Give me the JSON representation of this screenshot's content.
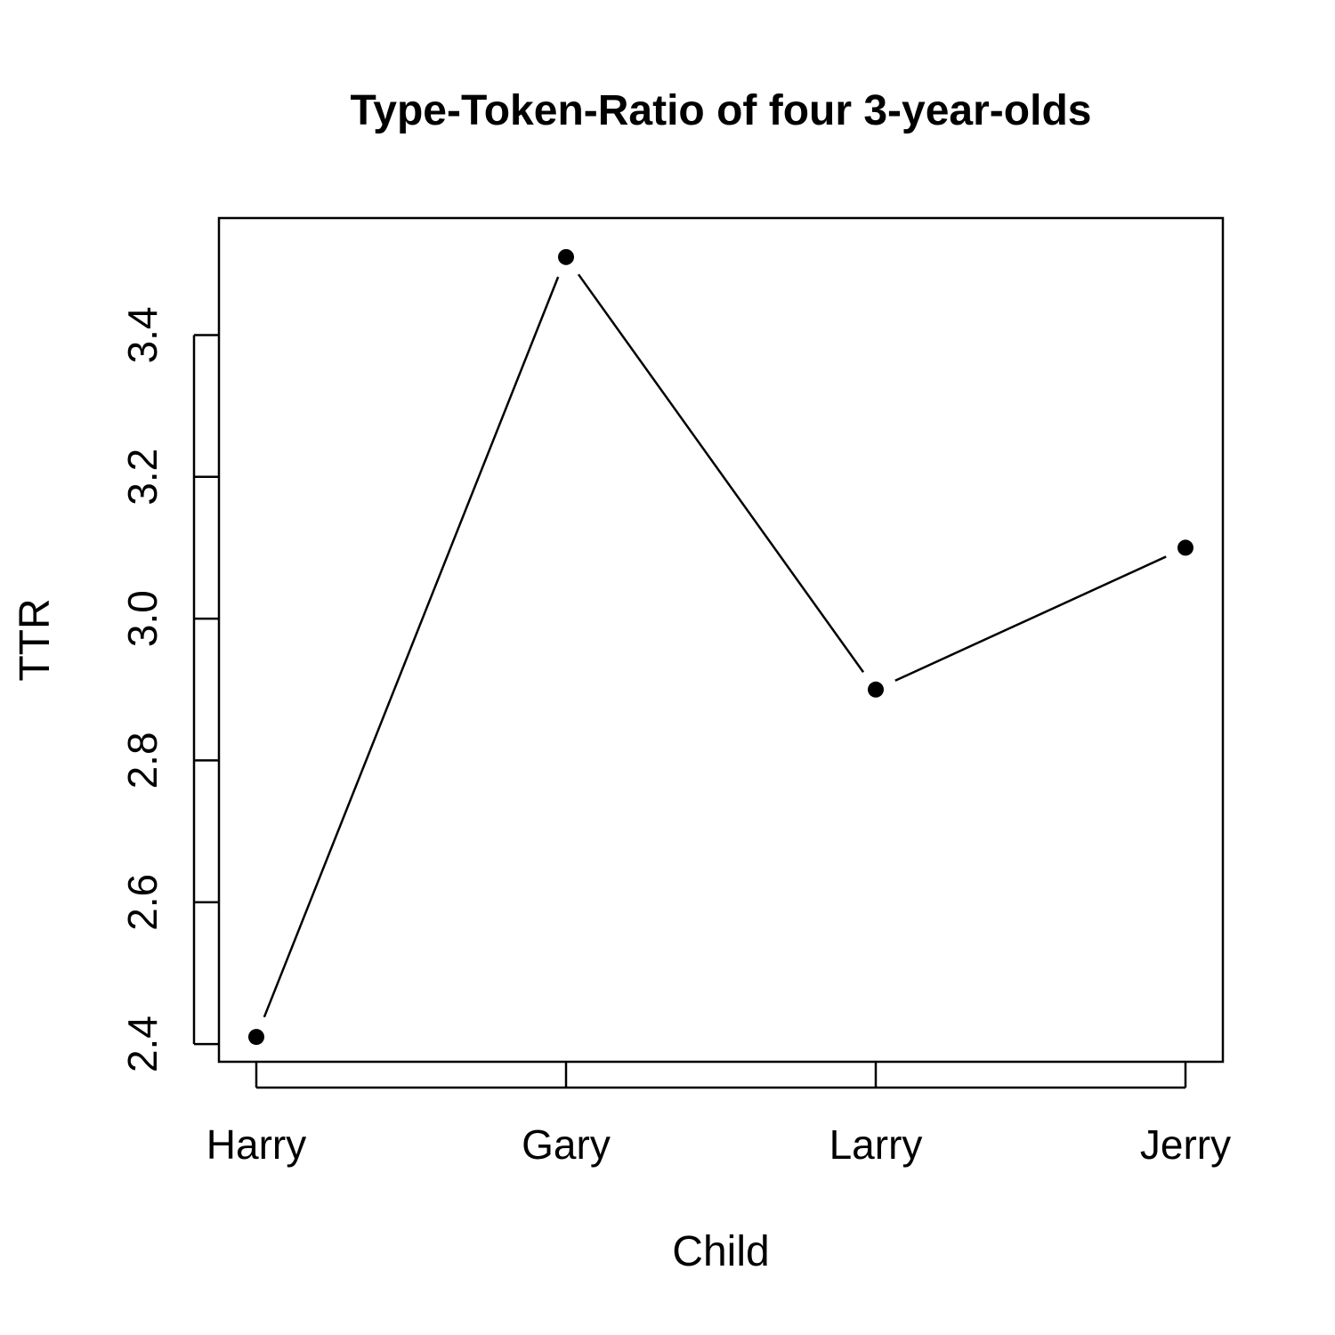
{
  "chart_data": {
    "type": "line",
    "title": "Type-Token-Ratio of four 3-year-olds",
    "xlabel": "Child",
    "ylabel": "TTR",
    "categories": [
      "Harry",
      "Gary",
      "Larry",
      "Jerry"
    ],
    "values": [
      2.41,
      3.51,
      2.9,
      3.1
    ],
    "ylim": [
      2.375,
      3.565
    ],
    "yticks": [
      "2.4",
      "2.6",
      "2.8",
      "3.0",
      "3.2",
      "3.4"
    ],
    "line_style": "both",
    "grid": false,
    "legend": "none",
    "colors": {
      "line": "#000000",
      "points": "#000000",
      "background": "#ffffff"
    }
  }
}
